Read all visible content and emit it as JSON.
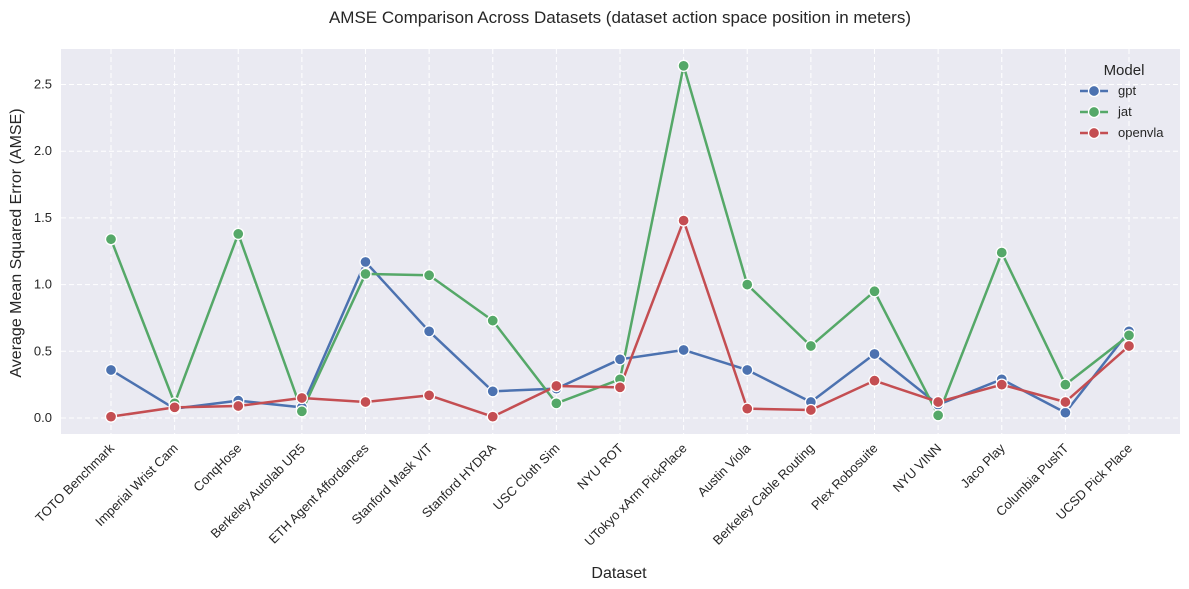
{
  "chart_data": {
    "type": "line",
    "title": "AMSE Comparison Across Datasets (dataset action space position in meters)",
    "xlabel": "Dataset",
    "ylabel": "Average Mean Squared Error (AMSE)",
    "ylim": [
      -0.11,
      2.7
    ],
    "yticks": [
      0.0,
      0.5,
      1.0,
      1.5,
      2.0,
      2.5
    ],
    "ytick_labels": [
      "0.0",
      "0.5",
      "1.0",
      "1.5",
      "2.0",
      "2.5"
    ],
    "grid": true,
    "legend": {
      "title": "Model",
      "position": "top-right"
    },
    "categories": [
      "TOTO Benchmark",
      "Imperial Wrist Cam",
      "ConqHose",
      "Berkeley Autolab UR5",
      "ETH Agent Affordances",
      "Stanford Mask VIT",
      "Stanford HYDRA",
      "USC Cloth Sim",
      "NYU ROT",
      "UTokyo xArm PickPlace",
      "Austin Viola",
      "Berkeley Cable Routing",
      "Plex Robosuite",
      "NYU VINN",
      "Jaco Play",
      "Columbia PushT",
      "UCSD Pick Place"
    ],
    "series": [
      {
        "name": "gpt",
        "color": "#4c72b0",
        "values": [
          0.36,
          0.07,
          0.13,
          0.08,
          1.17,
          0.65,
          0.2,
          0.22,
          0.44,
          0.51,
          0.36,
          0.12,
          0.48,
          0.1,
          0.29,
          0.04,
          0.65
        ]
      },
      {
        "name": "jat",
        "color": "#55a868",
        "values": [
          1.34,
          0.11,
          1.38,
          0.05,
          1.08,
          1.07,
          0.73,
          0.11,
          0.29,
          2.64,
          1.0,
          0.54,
          0.95,
          0.02,
          1.24,
          0.25,
          0.62
        ]
      },
      {
        "name": "openvla",
        "color": "#c44e52",
        "values": [
          0.01,
          0.08,
          0.09,
          0.15,
          0.12,
          0.17,
          0.01,
          0.24,
          0.23,
          1.48,
          0.07,
          0.06,
          0.28,
          0.12,
          0.25,
          0.12,
          0.54
        ]
      }
    ]
  }
}
